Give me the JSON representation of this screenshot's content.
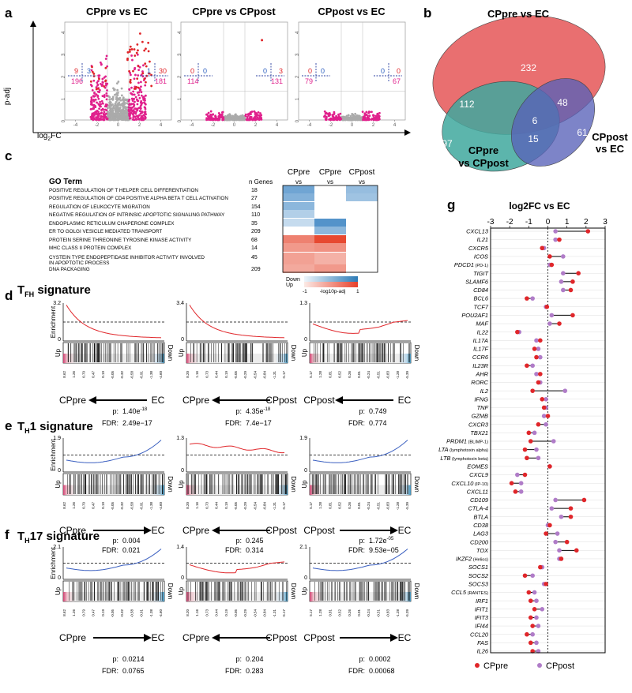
{
  "panel_labels": {
    "a": "a",
    "b": "b",
    "c": "c",
    "d": "d",
    "e": "e",
    "f": "f",
    "g": "g"
  },
  "colors": {
    "pink": "#e0208c",
    "red": "#e0262a",
    "purple": "#b07cc8",
    "blue": "#2b5fbf",
    "gray": "#aaaaaa",
    "venn_a": "#e96f70",
    "venn_b": "#3fa89e",
    "venn_c": "#5961b8",
    "gsea_red": "#e0262a",
    "gsea_blue": "#3a5fc0"
  },
  "chart_data": [
    {
      "type": "scatter",
      "name": "volcano",
      "xlabel_main": "log",
      "xlabel_sub": "2",
      "xlabel_tail": "FC",
      "ylabel": "p-adj",
      "x_ticks": [
        "-4",
        "-2",
        "0",
        "2",
        "4"
      ],
      "y_ticks": [
        "0",
        "1",
        "2",
        "3",
        "4"
      ],
      "xlim": [
        -5,
        5
      ],
      "ylim": [
        0,
        4.2
      ],
      "panels": [
        {
          "title": "CPpre vs EC",
          "ul": "9",
          "ur": "3",
          "pinkl": "196",
          "ur2": "1",
          "ur3": "30",
          "pinkr": "181"
        },
        {
          "title": "CPpre vs CPpost",
          "ul": "0",
          "ur": "0",
          "pinkl": "114",
          "ur2": "0",
          "ur3": "3",
          "pinkr": "131"
        },
        {
          "title": "CPpost vs EC",
          "ul": "0",
          "ur": "0",
          "pinkl": "79",
          "ur2": "0",
          "ur3": "0",
          "pinkr": "67"
        }
      ]
    },
    {
      "type": "venn",
      "sets": [
        "CPpre vs EC",
        "CPpre vs CPpost",
        "CPpost vs EC"
      ],
      "set_label_b_l1": "CPpre",
      "set_label_b_l2": "vs CPpost",
      "set_label_c_l1": "CPpost",
      "set_label_c_l2": "vs EC",
      "regions": {
        "a_only": "232",
        "b_only": "97",
        "c_only": "61",
        "ab": "112",
        "ac": "48",
        "bc": "15",
        "abc": "6"
      }
    },
    {
      "type": "heatmap",
      "header_term": "GO Term",
      "header_n": "n Genes",
      "columns": [
        {
          "l1": "CPpre",
          "l2": "vs",
          "l3": "EC"
        },
        {
          "l1": "CPpre",
          "l2": "vs",
          "l3": "CPpost"
        },
        {
          "l1": "CPpost",
          "l2": "vs",
          "l3": "EC"
        }
      ],
      "rows": [
        {
          "term": "POSITIVE REGULATION OF T HELPER CELL DIFFERENTIATION",
          "n": "18",
          "vals": [
            -0.65,
            0,
            -0.45
          ]
        },
        {
          "term": "POSITIVE REGULATION OF CD4 POSITIVE ALPHA BETA T CELL ACTIVATION",
          "n": "27",
          "vals": [
            -0.55,
            0,
            -0.4
          ]
        },
        {
          "term": "REGULATION OF LEUKOCYTE MIGRATION",
          "n": "154",
          "vals": [
            -0.5,
            0,
            0
          ]
        },
        {
          "term": "NEGATIVE REGULATION OF INTRINSIC APOPTOTIC SIGNALING PATHWAY",
          "n": "110",
          "vals": [
            -0.3,
            0,
            0
          ]
        },
        {
          "term": "ENDOPLASMIC RETICULUM CHAPERONE COMPLEX",
          "n": "35",
          "vals": [
            -0.2,
            -0.8,
            0
          ]
        },
        {
          "term": "ER TO GOLGI VESICLE MEDIATED TRANSPORT",
          "n": "209",
          "vals": [
            0,
            -0.5,
            0
          ]
        },
        {
          "term": "PROTEIN SERINE THREONINE TYROSINE KINASE ACTIVITY",
          "n": "68",
          "vals": [
            0.6,
            0.95,
            0
          ]
        },
        {
          "term": "MHC CLASS II PROTEIN COMPLEX",
          "n": "14",
          "vals": [
            0.45,
            0.5,
            0
          ]
        },
        {
          "term": "CYSTEIN TYPE ENDOPEPTIDASE INHIBITOR ACTIVITY INVOLVED",
          "term2": " IN APOPTOTIC PROCESS",
          "n": "45",
          "vals": [
            0.4,
            0.3,
            0
          ]
        },
        {
          "term": "DNA PACKAGING",
          "n": "209",
          "vals": [
            0.35,
            0.45,
            0
          ]
        }
      ],
      "legend": {
        "down": "Down",
        "up": "Up",
        "min": "-1",
        "mid": "-log10p-adj",
        "max": "1"
      }
    },
    {
      "type": "line",
      "name": "gsea",
      "enrichment_label": "Enrichment",
      "up": "Up",
      "down": "Down",
      "rank_ticks_a": [
        "8.62",
        "1.26",
        "0.79",
        "0.47",
        "0.19",
        "-0.05",
        "-0.32",
        "-0.58",
        "-0.91",
        "-1.38",
        "-4.60"
      ],
      "rank_ticks_b": [
        "8.20",
        "1.16",
        "0.73",
        "0.44",
        "0.19",
        "-0.05",
        "-0.29",
        "-0.54",
        "-0.84",
        "-1.31",
        "-5.17"
      ],
      "rank_ticks_c": [
        "5.17",
        "1.28",
        "0.81",
        "0.52",
        "0.26",
        "0.01",
        "-0.24",
        "-0.51",
        "-0.83",
        "-1.28",
        "-5.39"
      ],
      "signatures": [
        {
          "title_main": "T",
          "title_sub": "FH",
          "title_tail": " signature",
          "panels": [
            {
              "ymax": "3.2",
              "shape": "decR",
              "color": "red",
              "from": "CPpre",
              "to": "EC",
              "dir": "left",
              "p": "1.40e",
              "p_exp": "-18",
              "fdr": "2.49e−17"
            },
            {
              "ymax": "3.4",
              "shape": "decR",
              "color": "red",
              "from": "CPpre",
              "to": "CPpost",
              "dir": "left",
              "p": "4.35e",
              "p_exp": "-18",
              "fdr": "7.4e−17"
            },
            {
              "ymax": "1.3",
              "shape": "dipR",
              "color": "red",
              "from": "CPpost",
              "to": "EC",
              "dir": "left",
              "p": "0.749",
              "p_exp": "",
              "fdr": "0.774"
            }
          ]
        },
        {
          "title_main": "T",
          "title_sub": "H",
          "title_tail": "1 signature",
          "panels": [
            {
              "ymax": "1.9",
              "shape": "riseB",
              "color": "blue",
              "from": "CPpre",
              "to": "EC",
              "dir": "right",
              "p": "0.004",
              "p_exp": "",
              "fdr": "0.021"
            },
            {
              "ymax": "1.3",
              "shape": "flatR",
              "color": "red",
              "from": "CPpre",
              "to": "CPpost",
              "dir": "left",
              "p": "0.245",
              "p_exp": "",
              "fdr": "0.314"
            },
            {
              "ymax": "1.9",
              "shape": "riseB",
              "color": "blue",
              "from": "CPpost",
              "to": "EC",
              "dir": "right",
              "p": "1.72e",
              "p_exp": "-05",
              "fdr": "9.53e−05"
            }
          ]
        },
        {
          "title_main": "T",
          "title_sub": "H",
          "title_tail": "17 signature",
          "panels": [
            {
              "ymax": "2.1",
              "shape": "riseB",
              "color": "blue",
              "from": "CPpre",
              "to": "EC",
              "dir": "right",
              "p": "0.0214",
              "p_exp": "",
              "fdr": "0.0765"
            },
            {
              "ymax": "1.4",
              "shape": "dipR",
              "color": "red",
              "from": "CPpre",
              "to": "CPpost",
              "dir": "left",
              "p": "0.204",
              "p_exp": "",
              "fdr": "0.283"
            },
            {
              "ymax": "2.1",
              "shape": "riseB",
              "color": "blue",
              "from": "CPpost",
              "to": "EC",
              "dir": "right",
              "p": "0.0002",
              "p_exp": "",
              "fdr": "0.00068"
            }
          ]
        }
      ],
      "p_label": "p:",
      "fdr_label": "FDR:"
    },
    {
      "type": "dumbbell",
      "title": "log2FC vs EC",
      "x_ticks": [
        "-3",
        "-2",
        "-1",
        "0",
        "1",
        "2",
        "3"
      ],
      "xlim": [
        -3,
        3
      ],
      "legend": [
        "CPpre",
        "CPpost"
      ],
      "genes": [
        {
          "g": "CXCL13",
          "s": "",
          "pre": 2.1,
          "post": 0.4
        },
        {
          "g": "IL21",
          "s": "",
          "pre": 0.6,
          "post": 0.4
        },
        {
          "g": "CXCR5",
          "s": "",
          "pre": -0.3,
          "post": -0.2
        },
        {
          "g": "ICOS",
          "s": "",
          "pre": 0.1,
          "post": 0.8
        },
        {
          "g": "PDCD1",
          "s": " (PD-1)",
          "pre": 0.2,
          "post": 0.1
        },
        {
          "g": "TIGIT",
          "s": "",
          "pre": 1.6,
          "post": 0.8
        },
        {
          "g": "SLAMF6",
          "s": "",
          "pre": 1.3,
          "post": 0.7
        },
        {
          "g": "CD84",
          "s": "",
          "pre": 1.2,
          "post": 0.8
        },
        {
          "g": "BCL6",
          "s": "",
          "pre": -1.1,
          "post": -0.8
        },
        {
          "g": "TCF7",
          "s": "",
          "pre": -0.05,
          "post": -0.1
        },
        {
          "g": "POU2AF1",
          "s": "",
          "pre": 1.3,
          "post": 0.2
        },
        {
          "g": "MAF",
          "s": "",
          "pre": 0.6,
          "post": 0.1
        },
        {
          "g": "IL22",
          "s": "",
          "pre": -1.6,
          "post": -1.5
        },
        {
          "g": "IL17A",
          "s": "",
          "pre": -0.4,
          "post": -0.6
        },
        {
          "g": "IL17F",
          "s": "",
          "pre": -0.7,
          "post": -0.5
        },
        {
          "g": "CCR6",
          "s": "",
          "pre": -0.6,
          "post": -0.4
        },
        {
          "g": "IL23R",
          "s": "",
          "pre": -1.1,
          "post": -0.8
        },
        {
          "g": "AHR",
          "s": "",
          "pre": -0.4,
          "post": -0.6
        },
        {
          "g": "RORC",
          "s": "",
          "pre": -0.5,
          "post": -0.4
        },
        {
          "g": "IL2",
          "s": "",
          "pre": -0.8,
          "post": 0.9
        },
        {
          "g": "IFNG",
          "s": "",
          "pre": -0.3,
          "post": -0.1
        },
        {
          "g": "TNF",
          "s": "",
          "pre": -0.2,
          "post": -0.1
        },
        {
          "g": "GZMB",
          "s": "",
          "pre": 0.0,
          "post": -0.2
        },
        {
          "g": "CXCR3",
          "s": "",
          "pre": -0.5,
          "post": -0.1
        },
        {
          "g": "TBX21",
          "s": "",
          "pre": -1.0,
          "post": -0.7
        },
        {
          "g": "PRDM1",
          "s": " (BLIMP-1)",
          "pre": -0.9,
          "post": 0.3
        },
        {
          "g": "LTA",
          "s": " (lymphotoxin alpha)",
          "pre": -1.2,
          "post": -0.6
        },
        {
          "g": "LTB",
          "s": " (lymphotoxin beta)",
          "pre": -1.1,
          "post": -0.5
        },
        {
          "g": "EOMES",
          "s": "",
          "pre": 0.1,
          "post": 0.1
        },
        {
          "g": "CXCL9",
          "s": "",
          "pre": -1.2,
          "post": -1.6
        },
        {
          "g": "CXCL10",
          "s": " (IP-10)",
          "pre": -1.9,
          "post": -1.4
        },
        {
          "g": "CXCL11",
          "s": "",
          "pre": -1.7,
          "post": -1.4
        },
        {
          "g": "CD109",
          "s": "",
          "pre": 1.9,
          "post": 0.4
        },
        {
          "g": "CTLA-4",
          "s": "",
          "pre": 1.2,
          "post": 0.2
        },
        {
          "g": "BTLA",
          "s": "",
          "pre": 1.2,
          "post": 0.7
        },
        {
          "g": "CD38",
          "s": "",
          "pre": 0.1,
          "post": 0.0
        },
        {
          "g": "LAG3",
          "s": "",
          "pre": -0.1,
          "post": 0.5
        },
        {
          "g": "CD200",
          "s": "",
          "pre": 1.0,
          "post": 0.4
        },
        {
          "g": "TOX",
          "s": "",
          "pre": 1.5,
          "post": 0.6
        },
        {
          "g": "IKZF2",
          "s": " (Helios)",
          "pre": 0.7,
          "post": 0.6
        },
        {
          "g": "SOCS1",
          "s": "",
          "pre": -0.4,
          "post": -0.3
        },
        {
          "g": "SOCS2",
          "s": "",
          "pre": -1.2,
          "post": -0.8
        },
        {
          "g": "SOCS3",
          "s": "",
          "pre": -0.1,
          "post": -0.2
        },
        {
          "g": "CCL5",
          "s": " (RANTES)",
          "pre": -1.0,
          "post": -0.7
        },
        {
          "g": "IRF1",
          "s": "",
          "pre": -0.9,
          "post": -0.6
        },
        {
          "g": "IFIT1",
          "s": "",
          "pre": -0.7,
          "post": -0.3
        },
        {
          "g": "IFIT3",
          "s": "",
          "pre": -0.9,
          "post": -0.6
        },
        {
          "g": "IFI44",
          "s": "",
          "pre": -0.8,
          "post": -0.5
        },
        {
          "g": "CCL20",
          "s": "",
          "pre": -1.1,
          "post": -0.8
        },
        {
          "g": "FAS",
          "s": "",
          "pre": -0.9,
          "post": -0.6
        },
        {
          "g": "IL26",
          "s": "",
          "pre": -0.8,
          "post": -0.5
        }
      ]
    }
  ]
}
